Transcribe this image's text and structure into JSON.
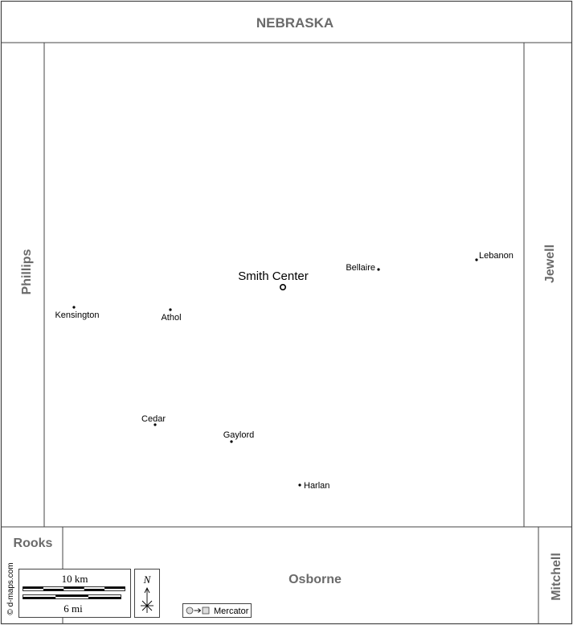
{
  "regions": {
    "north": "NEBRASKA",
    "west": "Phillips",
    "east": "Jewell",
    "southwest": "Rooks",
    "south": "Osborne",
    "southeast": "Mitchell"
  },
  "county_seat": "Smith Center",
  "towns": {
    "bellaire": "Bellaire",
    "lebanon": "Lebanon",
    "kensington": "Kensington",
    "athol": "Athol",
    "cedar": "Cedar",
    "gaylord": "Gaylord",
    "harlan": "Harlan"
  },
  "scale": {
    "km_label": "10 km",
    "mi_label": "6 mi"
  },
  "north_arrow": {
    "label": "N",
    "icon": "compass-rose-icon"
  },
  "projection": {
    "label": "Mercator",
    "icon": "projection-icon"
  },
  "credit": "© d-maps.com",
  "colors": {
    "line": "#444444",
    "label_gray": "#6a6a6a",
    "background": "#ffffff"
  }
}
